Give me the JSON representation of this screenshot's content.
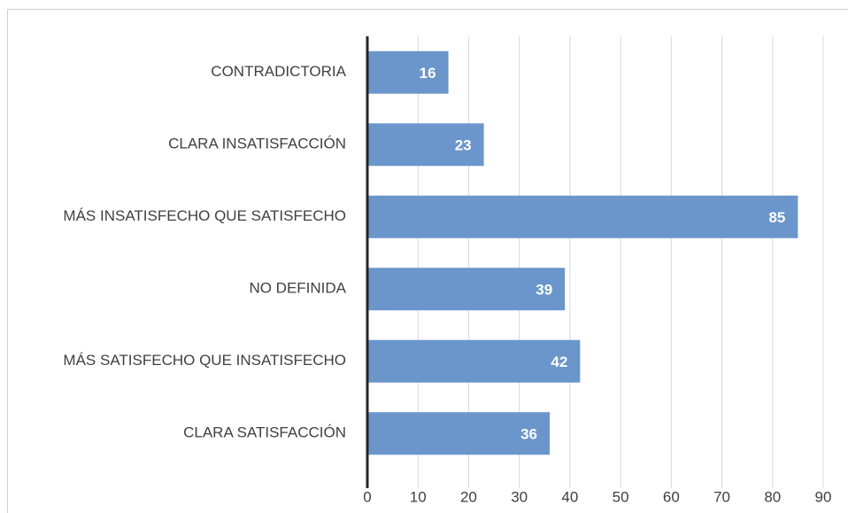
{
  "chart_data": {
    "type": "bar",
    "orientation": "horizontal",
    "categories": [
      "CONTRADICTORIA",
      "CLARA INSATISFACCIÓN",
      "MÁS INSATISFECHO QUE SATISFECHO",
      "NO DEFINIDA",
      "MÁS SATISFECHO QUE INSATISFECHO",
      "CLARA SATISFACCIÓN"
    ],
    "values": [
      16,
      23,
      85,
      39,
      42,
      36
    ],
    "color": "#6a96cb",
    "xlim": [
      0,
      90
    ],
    "xticks": [
      0,
      10,
      20,
      30,
      40,
      50,
      60,
      70,
      80,
      90
    ],
    "grid": true,
    "data_labels": true
  }
}
